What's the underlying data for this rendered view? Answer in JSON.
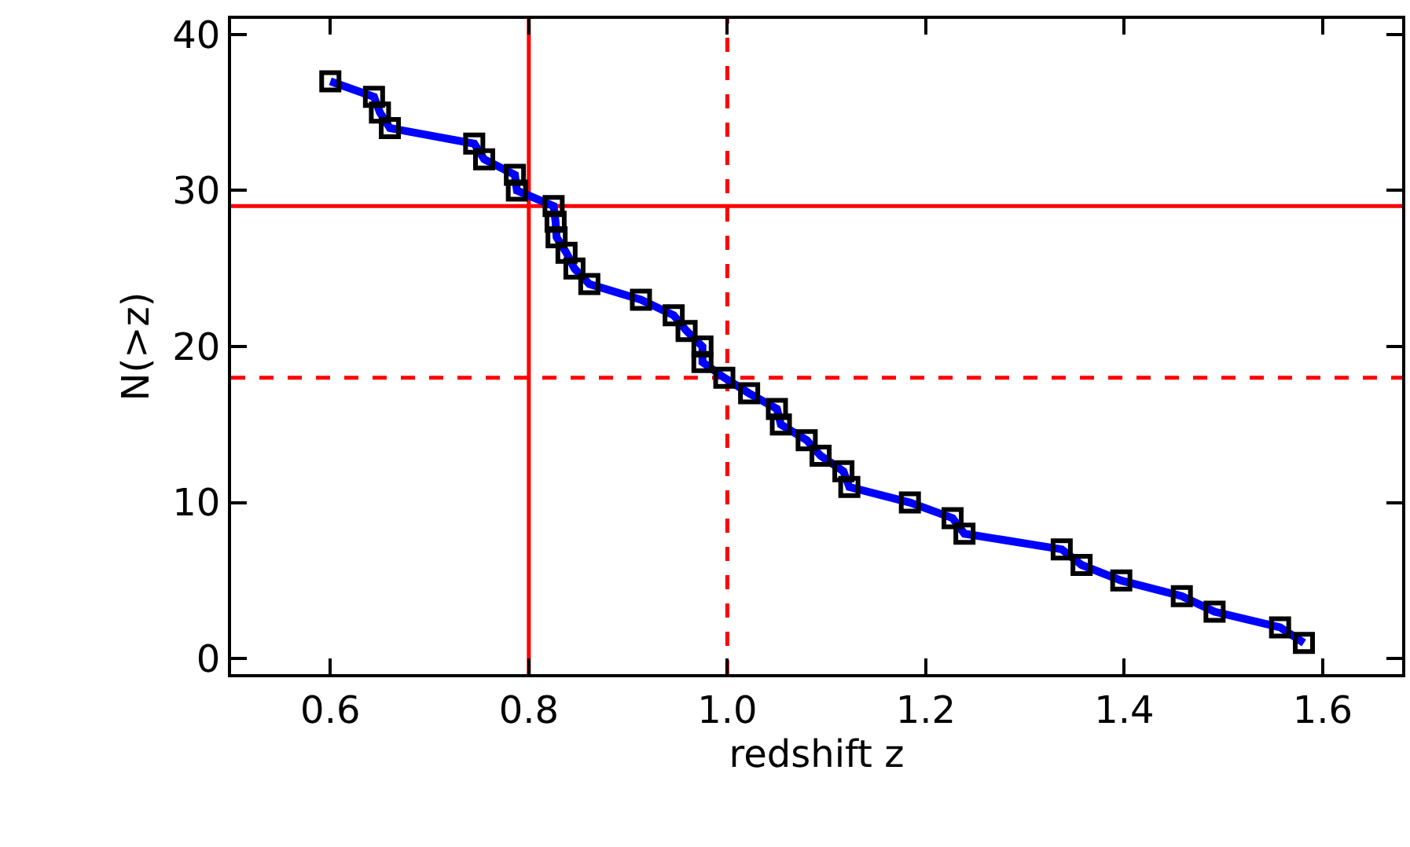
{
  "chart_data": {
    "type": "line",
    "xlabel": "redshift z",
    "ylabel": "N(>z)",
    "x": [
      0.6,
      0.644,
      0.65,
      0.66,
      0.745,
      0.755,
      0.786,
      0.788,
      0.825,
      0.827,
      0.828,
      0.838,
      0.846,
      0.861,
      0.913,
      0.946,
      0.959,
      0.975,
      0.975,
      0.997,
      1.022,
      1.05,
      1.054,
      1.08,
      1.094,
      1.117,
      1.123,
      1.184,
      1.227,
      1.239,
      1.337,
      1.357,
      1.397,
      1.458,
      1.491,
      1.557,
      1.581
    ],
    "series": [
      {
        "color": "#0000ff",
        "values": [
          37,
          36,
          35,
          34,
          33,
          32,
          31,
          30,
          29,
          28,
          27,
          26,
          25,
          24,
          23,
          22,
          21,
          20,
          19,
          18,
          17,
          16,
          15,
          14,
          13,
          12,
          11,
          10,
          9,
          8,
          7,
          6,
          5,
          4,
          3,
          2,
          1
        ]
      }
    ],
    "marker": "square",
    "line_style": "solid",
    "grid": false,
    "xlim": [
      0.5,
      1.68
    ],
    "ylim": [
      -1,
      41
    ],
    "xticks": [
      {
        "value": 0.6,
        "label": "0.6"
      },
      {
        "value": 0.8,
        "label": "0.8"
      },
      {
        "value": 1.0,
        "label": "1.0"
      },
      {
        "value": 1.2,
        "label": "1.2"
      },
      {
        "value": 1.4,
        "label": "1.4"
      },
      {
        "value": 1.6,
        "label": "1.6"
      }
    ],
    "yticks": [
      0,
      10,
      20,
      30,
      40
    ],
    "ref_lines": [
      {
        "axis": "x",
        "value": 0.8,
        "color": "#ff0000",
        "line_style": "solid"
      },
      {
        "axis": "x",
        "value": 1.0,
        "color": "#ff0000",
        "line_style": "dashed"
      },
      {
        "axis": "y",
        "value": 29,
        "color": "#ff0000",
        "line_style": "solid"
      },
      {
        "axis": "y",
        "value": 18,
        "color": "#ff0000",
        "line_style": "dashed"
      }
    ]
  }
}
